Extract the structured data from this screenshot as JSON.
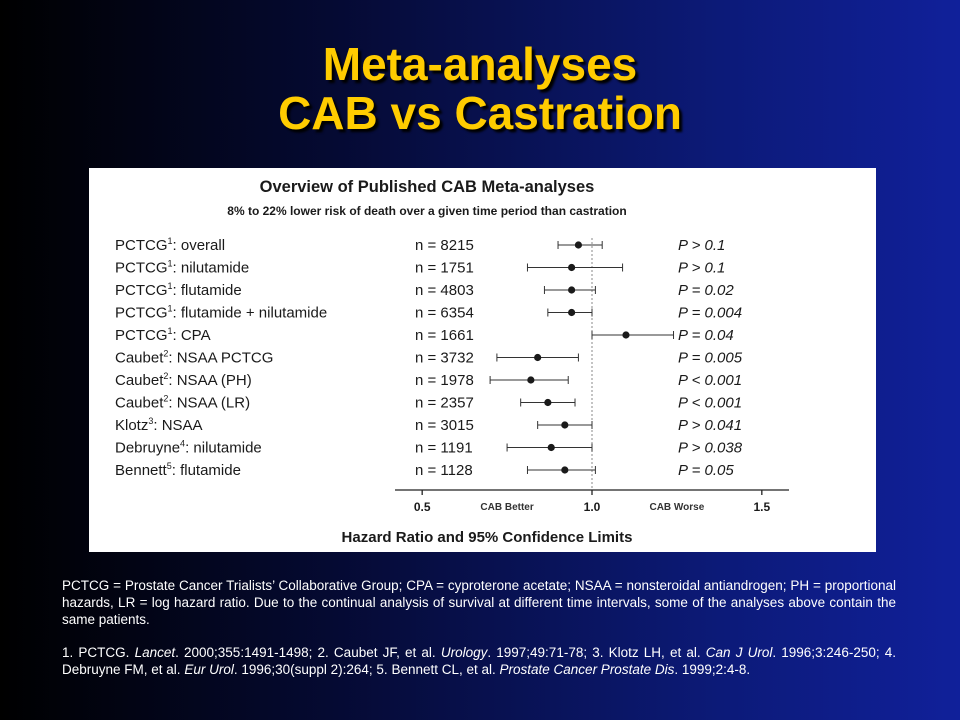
{
  "slide": {
    "title_line1": "Meta-analyses",
    "title_line2": "CAB vs Castration"
  },
  "chart_data": {
    "type": "forest",
    "title": "Overview of Published CAB Meta-analyses",
    "subtitle": "8% to 22% lower risk of death over a given time period than castration",
    "xlabel": "Hazard Ratio and 95% Confidence Limits",
    "xlim": [
      0.42,
      1.58
    ],
    "xticks": [
      0.5,
      1.0,
      1.5
    ],
    "xtick_labels": [
      "0.5",
      "1.0",
      "1.5"
    ],
    "reference_line": 1.0,
    "region_labels": {
      "left": "CAB Better",
      "right": "CAB Worse"
    },
    "rows": [
      {
        "name": "PCTCG",
        "sup": "1",
        "desc": ": overall",
        "n": "n = 8215",
        "hr": 0.96,
        "lo": 0.9,
        "hi": 1.03,
        "p": "P > 0.1"
      },
      {
        "name": "PCTCG",
        "sup": "1",
        "desc": ": nilutamide",
        "n": "n = 1751",
        "hr": 0.94,
        "lo": 0.81,
        "hi": 1.09,
        "p": "P > 0.1"
      },
      {
        "name": "PCTCG",
        "sup": "1",
        "desc": ": flutamide",
        "n": "n = 4803",
        "hr": 0.94,
        "lo": 0.86,
        "hi": 1.01,
        "p": "P = 0.02"
      },
      {
        "name": "PCTCG",
        "sup": "1",
        "desc": ": flutamide + nilutamide",
        "n": "n = 6354",
        "hr": 0.94,
        "lo": 0.87,
        "hi": 1.0,
        "p": "P = 0.004"
      },
      {
        "name": "PCTCG",
        "sup": "1",
        "desc": ": CPA",
        "n": "n = 1661",
        "hr": 1.1,
        "lo": 1.0,
        "hi": 1.24,
        "p": "P = 0.04"
      },
      {
        "name": "Caubet",
        "sup": "2",
        "desc": ": NSAA PCTCG",
        "n": "n = 3732",
        "hr": 0.84,
        "lo": 0.72,
        "hi": 0.96,
        "p": "P = 0.005"
      },
      {
        "name": "Caubet",
        "sup": "2",
        "desc": ": NSAA (PH)",
        "n": "n = 1978",
        "hr": 0.82,
        "lo": 0.7,
        "hi": 0.93,
        "p": "P < 0.001"
      },
      {
        "name": "Caubet",
        "sup": "2",
        "desc": ": NSAA (LR)",
        "n": "n = 2357",
        "hr": 0.87,
        "lo": 0.79,
        "hi": 0.95,
        "p": "P < 0.001"
      },
      {
        "name": "Klotz",
        "sup": "3",
        "desc": ": NSAA",
        "n": "n = 3015",
        "hr": 0.92,
        "lo": 0.84,
        "hi": 1.0,
        "p": "P > 0.041"
      },
      {
        "name": "Debruyne",
        "sup": "4",
        "desc": ": nilutamide",
        "n": "n = 1191",
        "hr": 0.88,
        "lo": 0.75,
        "hi": 1.0,
        "p": "P > 0.038"
      },
      {
        "name": "Bennett",
        "sup": "5",
        "desc": ": flutamide",
        "n": "n = 1128",
        "hr": 0.92,
        "lo": 0.81,
        "hi": 1.01,
        "p": "P = 0.05"
      }
    ]
  },
  "footnotes": {
    "abbrev": "PCTCG = Prostate Cancer Trialists’ Collaborative Group; CPA = cyproterone acetate; NSAA = nonsteroidal antiandrogen; PH = proportional hazards, LR = log hazard ratio. Due to the continual analysis of survival at different time intervals, some of the analyses above contain the same patients.",
    "refs": [
      {
        "t": "1. PCTCG. "
      },
      {
        "t": "Lancet",
        "i": true
      },
      {
        "t": ". 2000;355:1491-1498; 2. Caubet JF, et al. "
      },
      {
        "t": "Urology",
        "i": true
      },
      {
        "t": ". 1997;49:71-78; 3. Klotz LH, et al. "
      },
      {
        "t": "Can J Urol",
        "i": true
      },
      {
        "t": ". 1996;3:246-250; 4. Debruyne FM, et al. "
      },
      {
        "t": "Eur Urol",
        "i": true
      },
      {
        "t": ". 1996;30(suppl 2):264; 5. Bennett CL, et al. "
      },
      {
        "t": "Prostate Cancer Prostate Dis",
        "i": true
      },
      {
        "t": ". 1999;2:4-8."
      }
    ]
  }
}
